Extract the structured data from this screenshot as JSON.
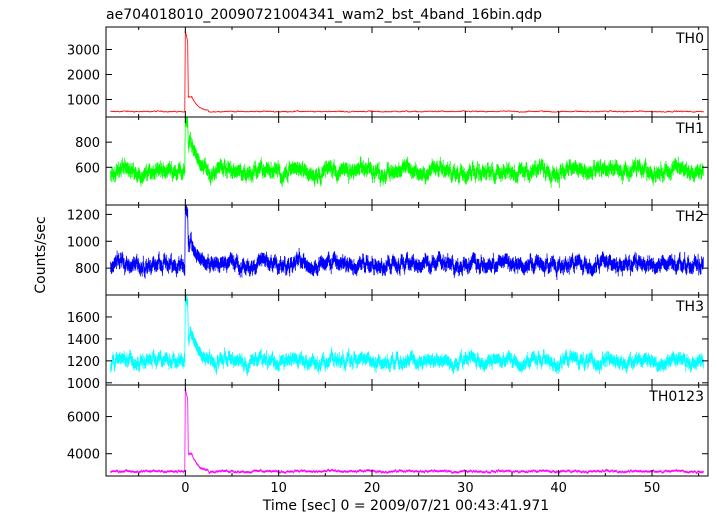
{
  "chart_data": {
    "type": "line",
    "title": "ae704018010_20090721004341_wam2_bst_4band_16bin.qdp",
    "xlabel": "Time [sec] 0 = 2009/07/21 00:43:41.971",
    "ylabel": "Counts/sec",
    "xlim": [
      -8.5,
      56
    ],
    "xticks": [
      0,
      10,
      20,
      30,
      40,
      50
    ],
    "panels": [
      {
        "name": "TH0",
        "color": "#ff0000",
        "ylim": [
          300,
          3900
        ],
        "yticks": [
          1000,
          2000,
          3000
        ],
        "baseline": 520,
        "noise": 25,
        "peak": 3750,
        "tail": 1100
      },
      {
        "name": "TH1",
        "color": "#00ff00",
        "ylim": [
          300,
          1000
        ],
        "yticks": [
          600,
          800
        ],
        "baseline": 570,
        "noise": 60,
        "peak": 980,
        "tail": 800
      },
      {
        "name": "TH2",
        "color": "#0000ff",
        "ylim": [
          600,
          1270
        ],
        "yticks": [
          800,
          1000,
          1200
        ],
        "baseline": 830,
        "noise": 55,
        "peak": 1250,
        "tail": 980
      },
      {
        "name": "TH3",
        "color": "#00ffff",
        "ylim": [
          980,
          1800
        ],
        "yticks": [
          1000,
          1200,
          1400,
          1600
        ],
        "baseline": 1200,
        "noise": 60,
        "peak": 1780,
        "tail": 1450
      },
      {
        "name": "TH0123",
        "color": "#ff00ff",
        "ylim": [
          2800,
          7700
        ],
        "yticks": [
          4000,
          6000
        ],
        "baseline": 3050,
        "noise": 70,
        "peak": 7500,
        "tail": 4000
      }
    ]
  }
}
